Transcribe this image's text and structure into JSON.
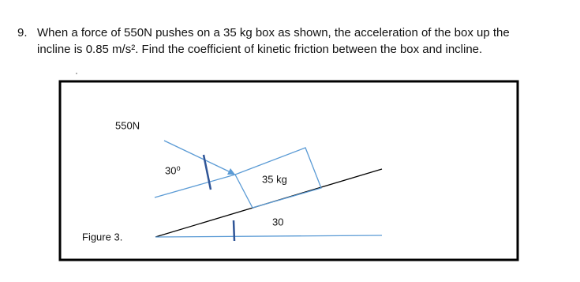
{
  "question": {
    "number": "9.",
    "lines": [
      "When a force of 550N pushes on a 35 kg box as shown, the acceleration of the box up the",
      "incline is 0.85 m/s². Find the coefficient of kinetic friction between the box and incline."
    ]
  },
  "figure": {
    "force_label": "550N",
    "angle_label": "30⁰",
    "mass_label": "35 kg",
    "incline_label": "30",
    "caption": "Figure 3."
  }
}
